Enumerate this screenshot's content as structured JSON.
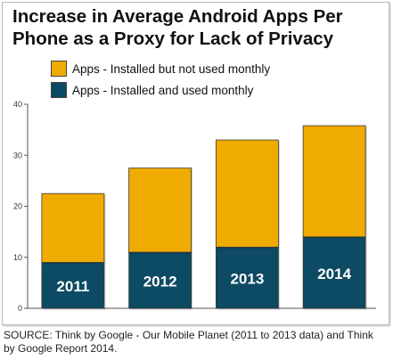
{
  "title": [
    "Increase in Average Android Apps Per",
    "Phone as a Proxy for Lack of Privacy"
  ],
  "legend": [
    {
      "label": "Apps - Installed but not used monthly",
      "color": "#f0ab00"
    },
    {
      "label": "Apps - Installed and used monthly",
      "color": "#0d4a63"
    }
  ],
  "source": "SOURCE: Think by Google - Our Mobile Planet (2011 to 2013 data) and Think by Google Report 2014.",
  "chart_data": {
    "type": "bar",
    "stacked": true,
    "categories": [
      "2011",
      "2012",
      "2013",
      "2014"
    ],
    "series": [
      {
        "name": "Apps - Installed and used monthly",
        "values": [
          9,
          11,
          12,
          14
        ],
        "color": "#0d4a63"
      },
      {
        "name": "Apps - Installed but not used monthly",
        "values": [
          13.5,
          16.5,
          21,
          21.8
        ],
        "color": "#f0ab00"
      }
    ],
    "yticks": [
      0,
      10,
      20,
      30,
      40
    ],
    "ylim": [
      0,
      40
    ],
    "grid": false,
    "legend_position": "top-left"
  }
}
